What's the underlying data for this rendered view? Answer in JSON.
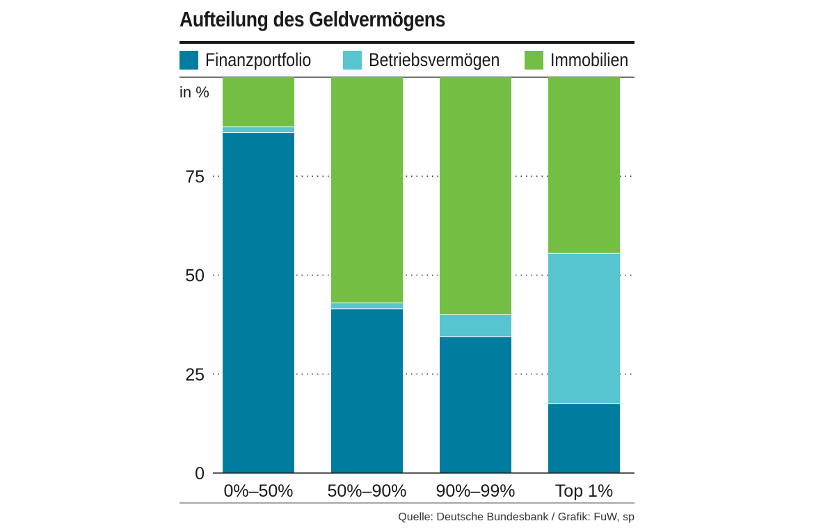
{
  "chart_data": {
    "type": "bar",
    "stacked": true,
    "title": "Aufteilung des Geldvermögens",
    "ylabel": "in %",
    "ylim": [
      0,
      100
    ],
    "yticks": [
      0,
      25,
      50,
      75
    ],
    "categories": [
      "0%–50%",
      "50%–90%",
      "90%–99%",
      "Top 1%"
    ],
    "series": [
      {
        "name": "Finanzportfolio",
        "color": "#007c9e",
        "values": [
          86,
          41.5,
          34.5,
          17.5
        ]
      },
      {
        "name": "Betriebsvermögen",
        "color": "#56c5d0",
        "values": [
          1.5,
          1.5,
          5.5,
          38
        ]
      },
      {
        "name": "Immobilien",
        "color": "#72bf44",
        "values": [
          12.5,
          57,
          60,
          44.5
        ]
      }
    ],
    "grid": "dotted",
    "legend_position": "top"
  },
  "source": "Quelle: Deutsche Bundesbank / Grafik: FuW, sp"
}
